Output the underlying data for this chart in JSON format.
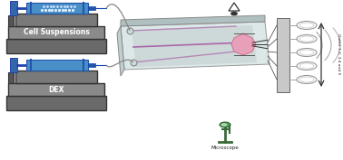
{
  "bg_color": "#ffffff",
  "label_cell": "Cell Suspensions",
  "label_dex": "DEX",
  "label_microscope": "Microscope",
  "label_outlet": "Outlet 1,2, 3,4 and 5",
  "syringe_blue": "#4a90c8",
  "syringe_dark": "#2255aa",
  "pump_gray": "#7a7a7a",
  "base_gray": "#6a6a6a",
  "label_box_gray": "#8a8a8a",
  "chip_face_color": "#dde8e8",
  "chip_edge_top": "#aabbbb",
  "chip_side_color": "#b8c8c8",
  "pink_color": "#e8a0b8",
  "channel_color": "#aa66aa",
  "tube_color": "#888888",
  "outlet_box_color": "#c8c8c8",
  "coil_color": "#999999"
}
